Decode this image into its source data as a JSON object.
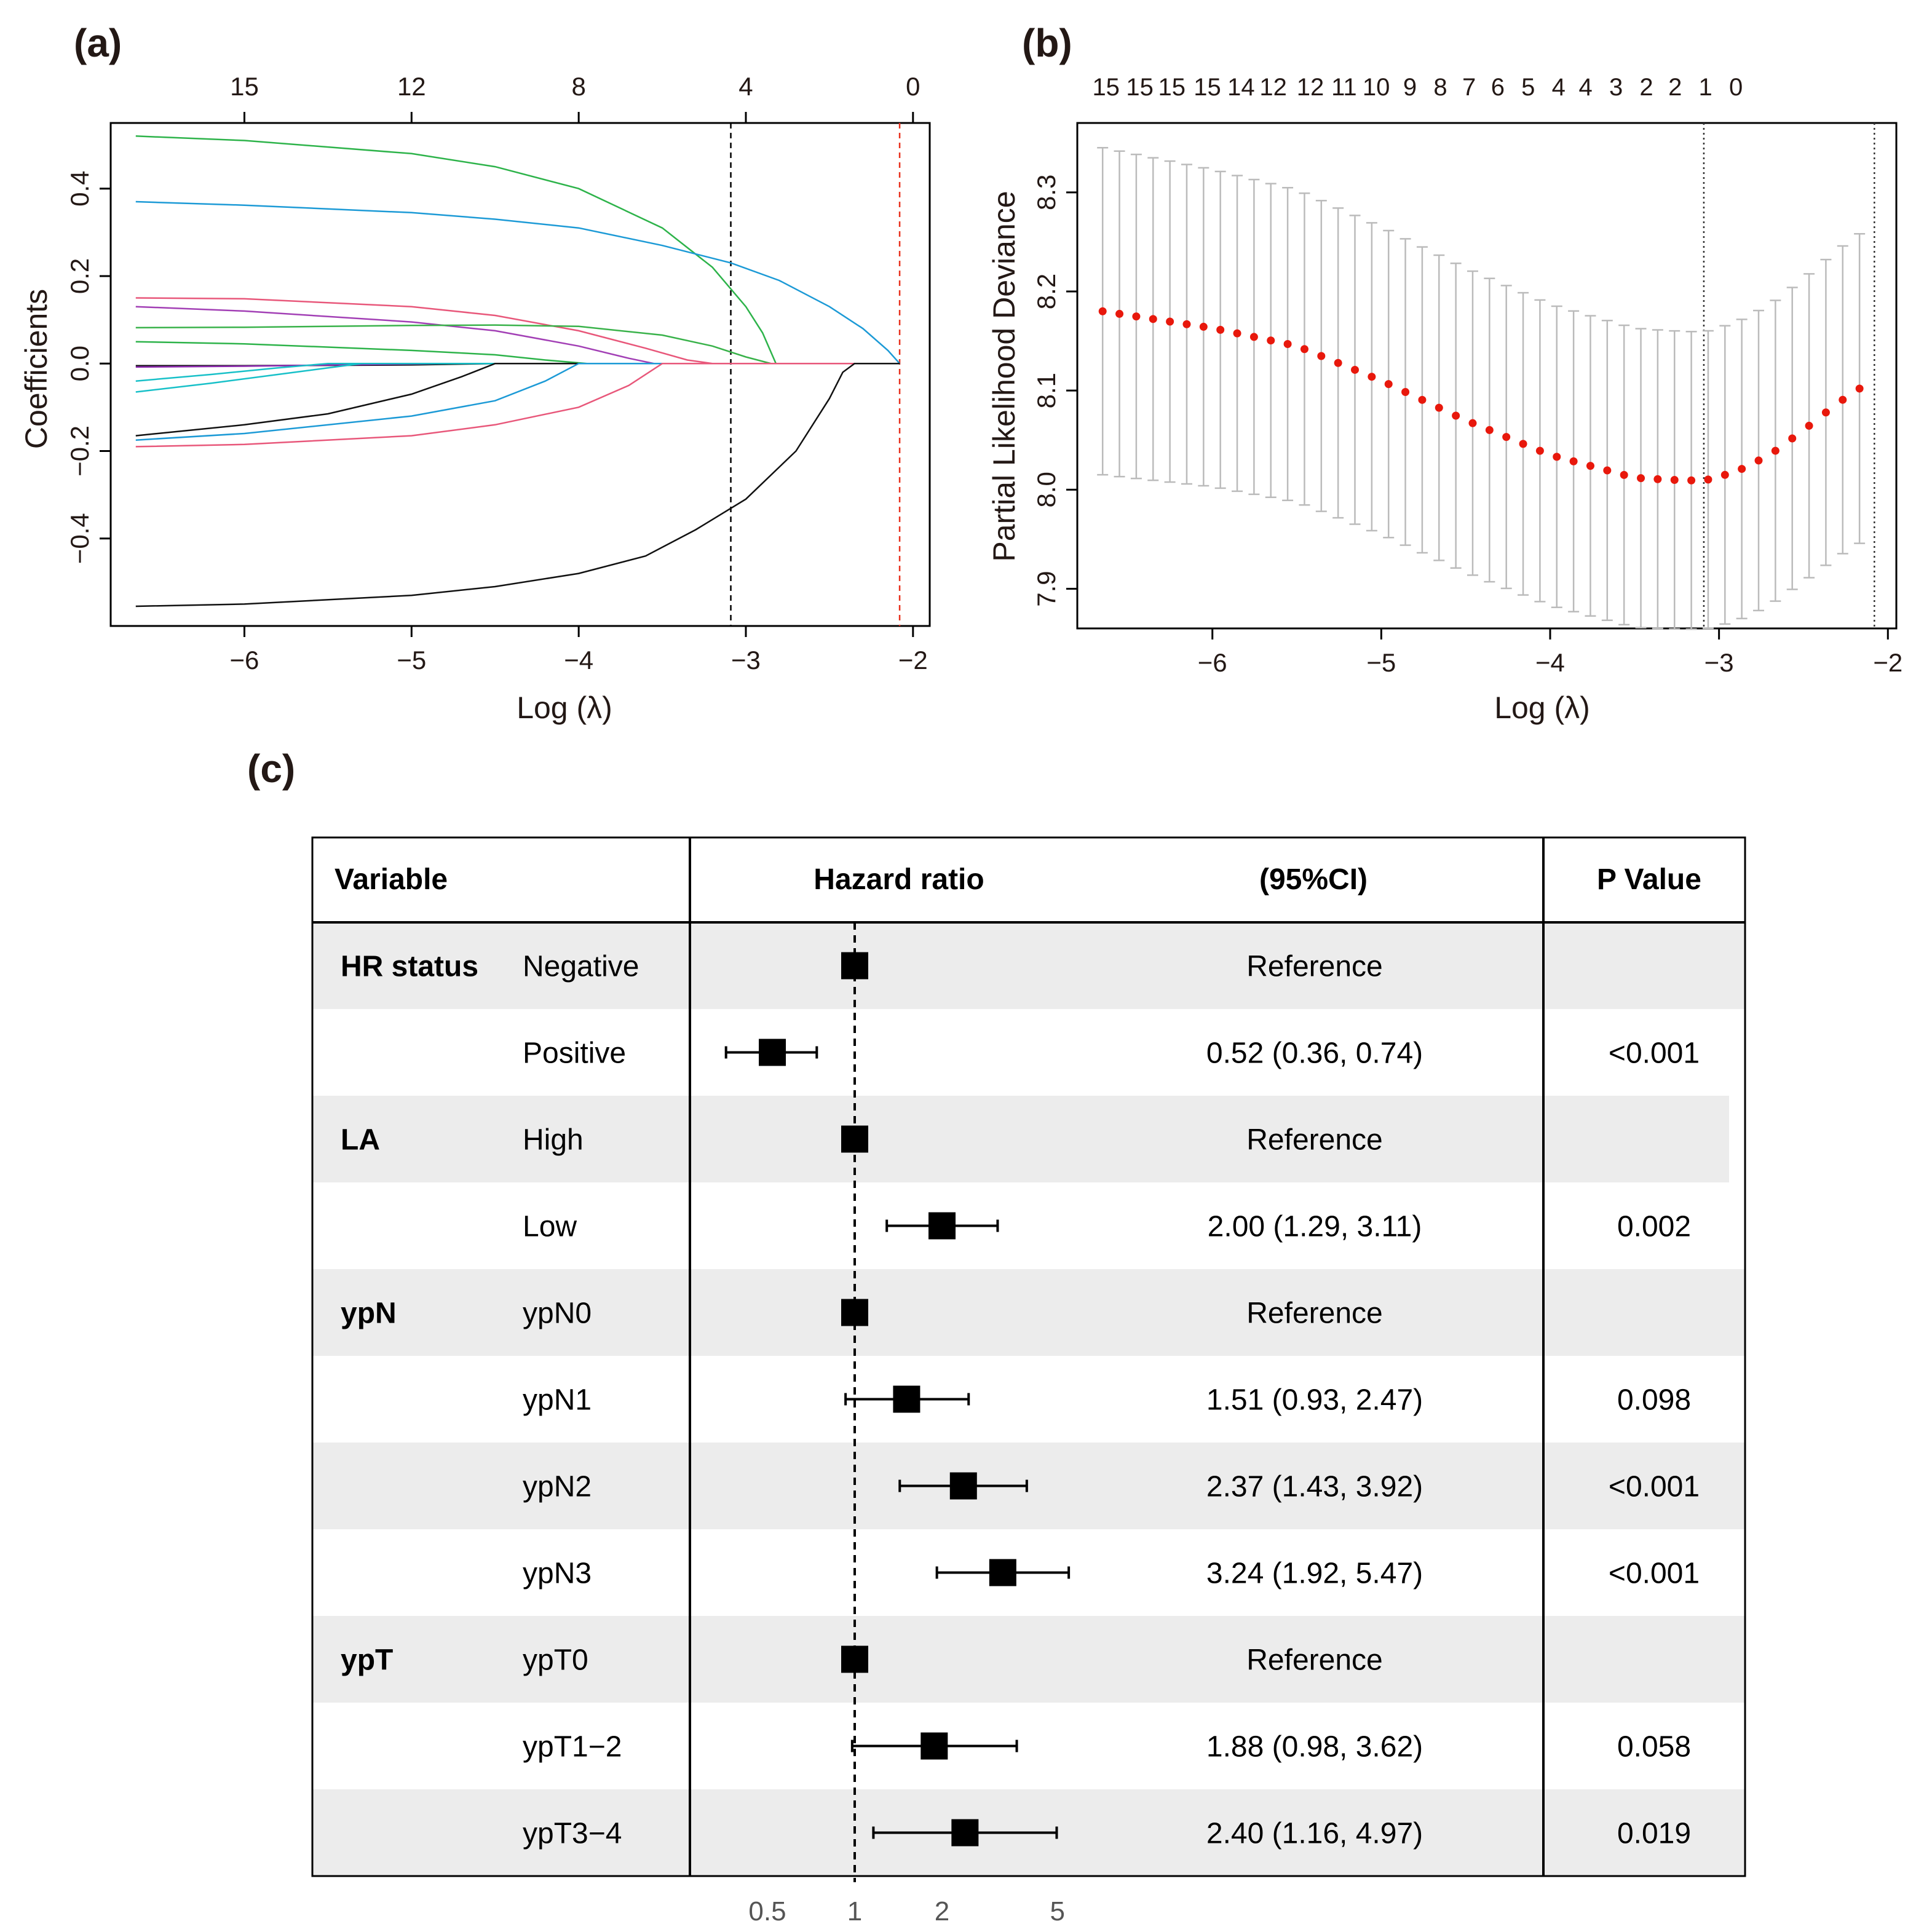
{
  "chart_data": [
    {
      "panel": "(a)",
      "type": "line",
      "xlabel": "Log (λ)",
      "ylabel": "Coefficients",
      "xlim": [
        -6.8,
        -1.9
      ],
      "ylim": [
        -0.6,
        0.55
      ],
      "x_ticks": [
        -6,
        -5,
        -4,
        -3,
        -2
      ],
      "x_tick_labels": [
        "−6",
        "−5",
        "−4",
        "−3",
        "−2"
      ],
      "y_ticks": [
        -0.4,
        -0.2,
        0.0,
        0.2,
        0.4
      ],
      "y_tick_labels": [
        "−0.4",
        "−0.2",
        "0.0",
        "0.2",
        "0.4"
      ],
      "top_ticks": [
        -6,
        -5,
        -4,
        -3,
        -2
      ],
      "top_tick_labels": [
        "15",
        "12",
        "8",
        "4",
        "0"
      ],
      "vlines": [
        {
          "x": -3.09,
          "color": "#000000",
          "style": "dashed"
        },
        {
          "x": -2.08,
          "color": "#e8321e",
          "style": "dashed"
        }
      ],
      "series": [
        {
          "name": "s1",
          "color": "#2db34a",
          "x": [
            -6.65,
            -6.0,
            -5.0,
            -4.5,
            -4.0,
            -3.5,
            -3.2,
            -3.0,
            -2.9,
            -2.82,
            -2.7,
            -2.5,
            -2.3,
            -2.08
          ],
          "values": [
            0.52,
            0.51,
            0.48,
            0.45,
            0.4,
            0.31,
            0.22,
            0.13,
            0.07,
            0.0,
            0.0,
            0.0,
            0.0,
            0.0
          ]
        },
        {
          "name": "s2",
          "color": "#1c9ad6",
          "x": [
            -6.65,
            -6.0,
            -5.0,
            -4.5,
            -4.0,
            -3.5,
            -3.09,
            -2.8,
            -2.5,
            -2.3,
            -2.15,
            -2.08
          ],
          "values": [
            0.37,
            0.362,
            0.345,
            0.33,
            0.31,
            0.27,
            0.23,
            0.19,
            0.13,
            0.08,
            0.03,
            0.0
          ]
        },
        {
          "name": "s3",
          "color": "#e8577a",
          "x": [
            -6.65,
            -6.0,
            -5.0,
            -4.5,
            -4.0,
            -3.6,
            -3.35,
            -3.2
          ],
          "values": [
            0.15,
            0.148,
            0.13,
            0.11,
            0.075,
            0.035,
            0.008,
            0.0
          ]
        },
        {
          "name": "s4",
          "color": "#a23fb5",
          "x": [
            -6.65,
            -6.0,
            -5.0,
            -4.5,
            -4.0,
            -3.7,
            -3.55
          ],
          "values": [
            0.13,
            0.12,
            0.095,
            0.075,
            0.04,
            0.012,
            0.0
          ]
        },
        {
          "name": "s5",
          "color": "#39b24a",
          "x": [
            -6.65,
            -6.0,
            -5.0,
            -4.5,
            -4.0,
            -3.5,
            -3.2,
            -3.0,
            -2.85
          ],
          "values": [
            0.082,
            0.083,
            0.087,
            0.088,
            0.085,
            0.065,
            0.04,
            0.015,
            0.0
          ]
        },
        {
          "name": "s6",
          "color": "#2db34a",
          "x": [
            -6.65,
            -6.0,
            -5.0,
            -4.5,
            -4.2,
            -3.95
          ],
          "values": [
            0.05,
            0.045,
            0.03,
            0.02,
            0.008,
            0.0
          ]
        },
        {
          "name": "s7",
          "color": "#111111",
          "x": [
            -6.65,
            -6.0,
            -5.0,
            -4.5
          ],
          "values": [
            -0.005,
            -0.005,
            -0.003,
            0.0
          ]
        },
        {
          "name": "s8",
          "color": "#8e2bb0",
          "x": [
            -6.65,
            -6.0,
            -5.2,
            -4.8
          ],
          "values": [
            -0.008,
            -0.006,
            -0.002,
            0.0
          ]
        },
        {
          "name": "s9",
          "color": "#17c0c8",
          "x": [
            -6.65,
            -6.2,
            -5.8,
            -5.5
          ],
          "values": [
            -0.04,
            -0.025,
            -0.01,
            0.0
          ]
        },
        {
          "name": "s10",
          "color": "#17c0c8",
          "x": [
            -6.65,
            -6.2,
            -5.8,
            -5.5,
            -5.3
          ],
          "values": [
            -0.065,
            -0.045,
            -0.025,
            -0.01,
            0.0
          ]
        },
        {
          "name": "s11",
          "color": "#111111",
          "x": [
            -6.65,
            -6.0,
            -5.5,
            -5.0,
            -4.7,
            -4.5
          ],
          "values": [
            -0.165,
            -0.14,
            -0.115,
            -0.07,
            -0.03,
            0.0
          ]
        },
        {
          "name": "s12",
          "color": "#1c9ad6",
          "x": [
            -6.65,
            -6.0,
            -5.0,
            -4.5,
            -4.2,
            -4.0
          ],
          "values": [
            -0.175,
            -0.16,
            -0.12,
            -0.085,
            -0.04,
            0.0
          ]
        },
        {
          "name": "s13",
          "color": "#e8577a",
          "x": [
            -6.65,
            -6.0,
            -5.0,
            -4.5,
            -4.0,
            -3.7,
            -3.5
          ],
          "values": [
            -0.19,
            -0.185,
            -0.165,
            -0.14,
            -0.1,
            -0.05,
            0.0
          ]
        },
        {
          "name": "s14",
          "color": "#111111",
          "x": [
            -6.65,
            -6.0,
            -5.0,
            -4.5,
            -4.0,
            -3.6,
            -3.3,
            -3.0,
            -2.7,
            -2.5,
            -2.42,
            -2.35
          ],
          "values": [
            -0.555,
            -0.55,
            -0.53,
            -0.51,
            -0.48,
            -0.44,
            -0.38,
            -0.31,
            -0.2,
            -0.08,
            -0.02,
            0.0
          ]
        }
      ]
    },
    {
      "panel": "(b)",
      "type": "scatter",
      "xlabel": "Log (λ)",
      "ylabel": "Partial Likelihood Deviance",
      "xlim": [
        -6.8,
        -1.95
      ],
      "ylim": [
        7.86,
        8.37
      ],
      "x_ticks": [
        -6,
        -5,
        -4,
        -3,
        -2
      ],
      "x_tick_labels": [
        "−6",
        "−5",
        "−4",
        "−3",
        "−2"
      ],
      "y_ticks": [
        7.9,
        8.0,
        8.1,
        8.2,
        8.3
      ],
      "y_tick_labels": [
        "7.9",
        "8.0",
        "8.1",
        "8.2",
        "8.3"
      ],
      "top_tick_labels": [
        "15",
        "15",
        "15",
        "15",
        "14",
        "12",
        "12",
        "11",
        "10",
        "9",
        "8",
        "7",
        "6",
        "5",
        "4",
        "4",
        "3",
        "2",
        "2",
        "1",
        "0"
      ],
      "top_tick_x": [
        -6.63,
        -6.43,
        -6.24,
        -6.03,
        -5.83,
        -5.64,
        -5.42,
        -5.22,
        -5.03,
        -4.83,
        -4.65,
        -4.48,
        -4.31,
        -4.13,
        -3.95,
        -3.79,
        -3.61,
        -3.43,
        -3.26,
        -3.08,
        -2.9
      ],
      "vlines": [
        {
          "x": -3.09,
          "color": "#333333",
          "style": "dotted"
        },
        {
          "x": -2.08,
          "color": "#333333",
          "style": "dotted"
        }
      ],
      "curve": {
        "color": "#e8180c",
        "x_start": -6.65,
        "x_step": 0.0996,
        "n_points": 46,
        "points": [
          [
            -6.65,
            8.18
          ],
          [
            -6.0,
            8.163
          ],
          [
            -5.5,
            8.145
          ],
          [
            -5.0,
            8.11
          ],
          [
            -4.5,
            8.07
          ],
          [
            -4.0,
            8.035
          ],
          [
            -3.5,
            8.012
          ],
          [
            -3.3,
            8.01
          ],
          [
            -3.09,
            8.009
          ],
          [
            -2.9,
            8.018
          ],
          [
            -2.7,
            8.035
          ],
          [
            -2.5,
            8.06
          ],
          [
            -2.3,
            8.087
          ],
          [
            -2.08,
            8.112
          ]
        ]
      },
      "error_half_width": {
        "color": "#bbbbbb",
        "points": [
          [
            -6.65,
            0.165
          ],
          [
            -6.0,
            0.16
          ],
          [
            -5.0,
            0.155
          ],
          [
            -4.0,
            0.152
          ],
          [
            -3.09,
            0.15
          ],
          [
            -2.6,
            0.152
          ],
          [
            -2.08,
            0.157
          ]
        ]
      }
    },
    {
      "panel": "(c)",
      "type": "table",
      "headers": {
        "variable": "Variable",
        "hr": "Hazard ratio",
        "ci": "(95%CI)",
        "p": "P Value"
      },
      "x_axis": {
        "scale": "log",
        "ticks": [
          0.5,
          1,
          2,
          5
        ],
        "tick_labels": [
          "0.5",
          "1",
          "2",
          "5"
        ],
        "reference": 1
      },
      "rows": [
        {
          "group": "HR status",
          "level": "Negative",
          "hr": 1.0,
          "lo": null,
          "hi": null,
          "ci_text": "Reference",
          "p": "",
          "shaded": true
        },
        {
          "group": "",
          "level": "Positive",
          "hr": 0.52,
          "lo": 0.36,
          "hi": 0.74,
          "ci_text": "0.52 (0.36, 0.74)",
          "p": "<0.001",
          "shaded": false
        },
        {
          "group": "LA",
          "level": "High",
          "hr": 1.0,
          "lo": null,
          "hi": null,
          "ci_text": "Reference",
          "p": "",
          "shaded": true
        },
        {
          "group": "",
          "level": "Low",
          "hr": 2.0,
          "lo": 1.29,
          "hi": 3.11,
          "ci_text": "2.00 (1.29, 3.11)",
          "p": "0.002",
          "shaded": false
        },
        {
          "group": "ypN",
          "level": "ypN0",
          "hr": 1.0,
          "lo": null,
          "hi": null,
          "ci_text": "Reference",
          "p": "",
          "shaded": true
        },
        {
          "group": "",
          "level": "ypN1",
          "hr": 1.51,
          "lo": 0.93,
          "hi": 2.47,
          "ci_text": "1.51 (0.93, 2.47)",
          "p": "0.098",
          "shaded": false
        },
        {
          "group": "",
          "level": "ypN2",
          "hr": 2.37,
          "lo": 1.43,
          "hi": 3.92,
          "ci_text": "2.37 (1.43, 3.92)",
          "p": "<0.001",
          "shaded": true
        },
        {
          "group": "",
          "level": "ypN3",
          "hr": 3.24,
          "lo": 1.92,
          "hi": 5.47,
          "ci_text": "3.24 (1.92, 5.47)",
          "p": "<0.001",
          "shaded": false
        },
        {
          "group": "ypT",
          "level": "ypT0",
          "hr": 1.0,
          "lo": null,
          "hi": null,
          "ci_text": "Reference",
          "p": "",
          "shaded": true
        },
        {
          "group": "",
          "level": "ypT1−2",
          "hr": 1.88,
          "lo": 0.98,
          "hi": 3.62,
          "ci_text": "1.88 (0.98, 3.62)",
          "p": "0.058",
          "shaded": false
        },
        {
          "group": "",
          "level": "ypT3−4",
          "hr": 2.4,
          "lo": 1.16,
          "hi": 4.97,
          "ci_text": "2.40 (1.16, 4.97)",
          "p": "0.019",
          "shaded": true
        }
      ]
    }
  ],
  "colors": {
    "shade": "#ececec",
    "axis": "#000000",
    "tick_gray": "#555555"
  }
}
